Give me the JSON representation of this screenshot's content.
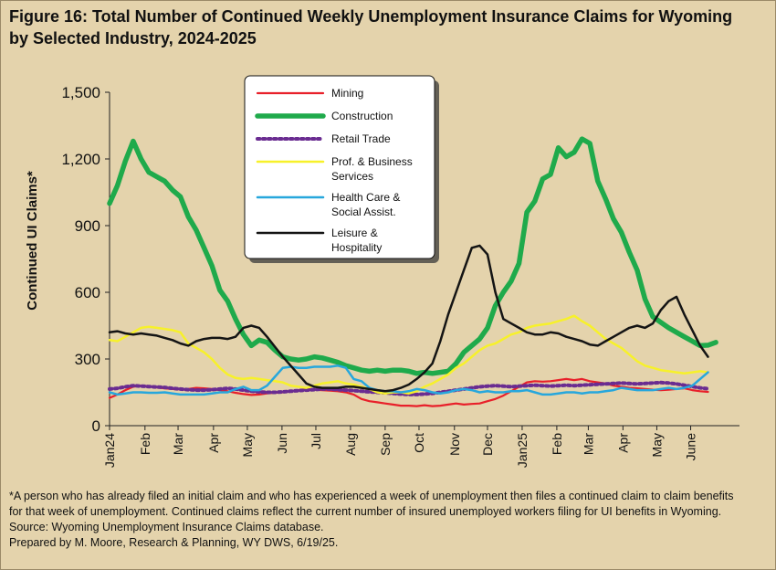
{
  "title_line1": "Figure 16: Total Number of Continued Weekly Unemployment Insurance Claims for Wyoming",
  "title_line2": "by Selected Industry, 2024-2025",
  "footnotes": [
    "*A person who has already filed an initial claim and who has experienced a week of unemployment then files a continued claim to claim benefits",
    "for that week of unemployment. Continued claims reflect the current number of insured unemployed workers filing for UI benefits in Wyoming.",
    "Source: Wyoming Unemployment Insurance Claims database.",
    "Prepared by M. Moore, Research & Planning, WY DWS, 6/19/25."
  ],
  "chart_data": {
    "type": "line",
    "ylabel": "Continued UI Claims*",
    "ylim": [
      0,
      1500
    ],
    "yticks": [
      0,
      300,
      600,
      900,
      1200,
      1500
    ],
    "ytick_labels": [
      "0",
      "300",
      "600",
      "900",
      "1,200",
      "1,500"
    ],
    "xticks": [
      {
        "week": 0,
        "label": "Jan24"
      },
      {
        "week": 4.5,
        "label": "Feb"
      },
      {
        "week": 8.7,
        "label": "Mar"
      },
      {
        "week": 13.2,
        "label": "Apr"
      },
      {
        "week": 17.5,
        "label": "May"
      },
      {
        "week": 21.9,
        "label": "Jun"
      },
      {
        "week": 26.2,
        "label": "Jul"
      },
      {
        "week": 30.6,
        "label": "Aug"
      },
      {
        "week": 35,
        "label": "Sep"
      },
      {
        "week": 39.3,
        "label": "Oct"
      },
      {
        "week": 43.8,
        "label": "Nov"
      },
      {
        "week": 48,
        "label": "Dec"
      },
      {
        "week": 52.4,
        "label": "Jan25"
      },
      {
        "week": 56.8,
        "label": "Feb"
      },
      {
        "week": 60.8,
        "label": "Mar"
      },
      {
        "week": 65.2,
        "label": "Apr"
      },
      {
        "week": 69.5,
        "label": "May"
      },
      {
        "week": 73.8,
        "label": "June"
      }
    ],
    "x_max": 80,
    "legend_position": "top-center",
    "series": [
      {
        "name": "Mining",
        "color": "#e8202a",
        "width": 2.2,
        "dash": "",
        "values": [
          125,
          140,
          160,
          175,
          180,
          178,
          172,
          168,
          165,
          163,
          165,
          170,
          168,
          165,
          160,
          155,
          148,
          142,
          138,
          140,
          145,
          148,
          150,
          155,
          160,
          165,
          162,
          160,
          158,
          155,
          150,
          140,
          120,
          110,
          105,
          100,
          95,
          90,
          90,
          88,
          92,
          88,
          90,
          95,
          100,
          95,
          98,
          100,
          110,
          120,
          135,
          155,
          175,
          195,
          200,
          198,
          200,
          205,
          210,
          205,
          210,
          200,
          195,
          190,
          180,
          175,
          170,
          168,
          165,
          162,
          160,
          162,
          165,
          168,
          160,
          155,
          152
        ]
      },
      {
        "name": "Construction",
        "color": "#1faa4b",
        "width": 5.5,
        "dash": "",
        "values": [
          1000,
          1080,
          1190,
          1280,
          1200,
          1140,
          1120,
          1100,
          1060,
          1030,
          940,
          880,
          800,
          720,
          610,
          560,
          480,
          410,
          360,
          385,
          375,
          340,
          310,
          300,
          295,
          300,
          310,
          305,
          295,
          285,
          270,
          260,
          250,
          245,
          250,
          245,
          250,
          250,
          245,
          235,
          240,
          235,
          240,
          245,
          280,
          330,
          360,
          390,
          440,
          540,
          600,
          650,
          730,
          960,
          1010,
          1110,
          1130,
          1250,
          1210,
          1230,
          1290,
          1270,
          1100,
          1020,
          930,
          870,
          780,
          700,
          570,
          490,
          465,
          440,
          420,
          400,
          380,
          360,
          362,
          375
        ]
      },
      {
        "name": "Retail Trade",
        "color": "#6a2c91",
        "width": 4,
        "dash": "2.5,3.5",
        "values": [
          165,
          168,
          175,
          180,
          178,
          176,
          174,
          172,
          168,
          165,
          162,
          160,
          160,
          162,
          165,
          168,
          165,
          160,
          155,
          152,
          150,
          150,
          152,
          155,
          158,
          160,
          162,
          165,
          165,
          162,
          160,
          158,
          155,
          152,
          150,
          148,
          145,
          142,
          140,
          140,
          142,
          145,
          150,
          155,
          160,
          165,
          170,
          175,
          178,
          180,
          178,
          175,
          178,
          180,
          182,
          180,
          178,
          180,
          182,
          180,
          182,
          184,
          186,
          188,
          190,
          192,
          190,
          188,
          190,
          192,
          194,
          192,
          188,
          182,
          176,
          170,
          166
        ]
      },
      {
        "name": "Prof. & Business Services",
        "color": "#f7f12a",
        "width": 2.5,
        "dash": "",
        "values": [
          385,
          380,
          400,
          420,
          440,
          445,
          440,
          435,
          430,
          420,
          370,
          350,
          330,
          300,
          260,
          230,
          215,
          210,
          215,
          210,
          205,
          200,
          195,
          180,
          175,
          170,
          180,
          190,
          195,
          200,
          190,
          185,
          175,
          165,
          150,
          145,
          150,
          150,
          145,
          155,
          175,
          190,
          210,
          230,
          260,
          280,
          310,
          340,
          360,
          370,
          390,
          410,
          420,
          440,
          450,
          455,
          460,
          470,
          480,
          495,
          470,
          450,
          420,
          390,
          370,
          350,
          320,
          290,
          270,
          260,
          250,
          245,
          240,
          235,
          240,
          245,
          240
        ]
      },
      {
        "name": "Health Care & Social Assist.",
        "color": "#27a7dc",
        "width": 2.5,
        "dash": "",
        "values": [
          150,
          140,
          145,
          150,
          150,
          148,
          148,
          150,
          145,
          140,
          140,
          140,
          140,
          145,
          150,
          150,
          165,
          175,
          160,
          160,
          180,
          220,
          260,
          265,
          260,
          260,
          265,
          265,
          265,
          270,
          260,
          210,
          200,
          170,
          160,
          155,
          155,
          150,
          155,
          165,
          160,
          150,
          145,
          150,
          160,
          165,
          160,
          150,
          155,
          150,
          150,
          155,
          155,
          160,
          150,
          140,
          140,
          145,
          150,
          150,
          145,
          150,
          150,
          155,
          160,
          170,
          165,
          160,
          160,
          160,
          165,
          170,
          165,
          170,
          180,
          210,
          240
        ]
      },
      {
        "name": "Leisure & Hospitality",
        "color": "#141414",
        "width": 2.5,
        "dash": "",
        "values": [
          420,
          425,
          415,
          410,
          415,
          410,
          405,
          395,
          385,
          370,
          360,
          380,
          390,
          395,
          395,
          390,
          400,
          440,
          450,
          440,
          400,
          355,
          310,
          270,
          230,
          190,
          175,
          170,
          170,
          170,
          175,
          175,
          170,
          165,
          160,
          155,
          160,
          170,
          185,
          210,
          240,
          280,
          380,
          500,
          600,
          700,
          800,
          810,
          770,
          600,
          480,
          460,
          440,
          420,
          410,
          410,
          420,
          415,
          400,
          390,
          380,
          365,
          360,
          380,
          400,
          420,
          440,
          450,
          440,
          460,
          520,
          560,
          580,
          500,
          430,
          360,
          310
        ]
      }
    ]
  }
}
